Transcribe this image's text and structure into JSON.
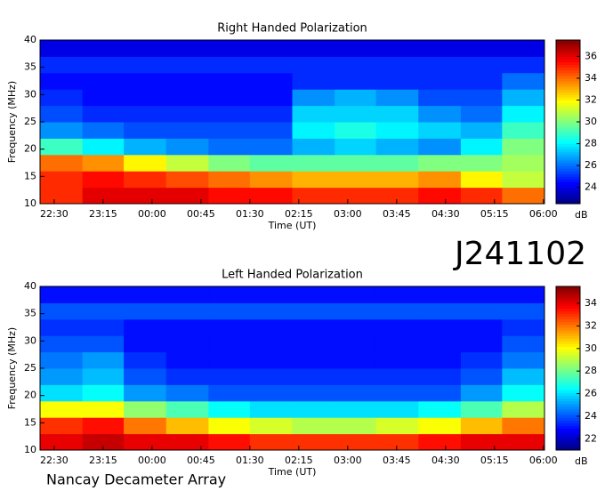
{
  "chart_data": [
    {
      "type": "heatmap",
      "title": "Right Handed Polarization",
      "x_label": "Time (UT)",
      "y_label": "Frequency (MHz)",
      "colorbar_label": "dB",
      "colormap": "jet",
      "xlim": [
        1337,
        1801
      ],
      "xticks": [
        {
          "value": 1350,
          "label": "22:30"
        },
        {
          "value": 1395,
          "label": "23:15"
        },
        {
          "value": 1440,
          "label": "00:00"
        },
        {
          "value": 1485,
          "label": "00:45"
        },
        {
          "value": 1530,
          "label": "01:30"
        },
        {
          "value": 1575,
          "label": "02:15"
        },
        {
          "value": 1620,
          "label": "03:00"
        },
        {
          "value": 1665,
          "label": "03:45"
        },
        {
          "value": 1710,
          "label": "04:30"
        },
        {
          "value": 1755,
          "label": "05:15"
        },
        {
          "value": 1800,
          "label": "06:00"
        }
      ],
      "ylim": [
        10,
        40
      ],
      "yticks": [
        10,
        15,
        20,
        25,
        30,
        35,
        40
      ],
      "zlim": [
        22.5,
        37.5
      ],
      "zticks": [
        24,
        26,
        28,
        30,
        32,
        34,
        36
      ],
      "x_edges": [
        1337,
        1376,
        1414,
        1453,
        1492,
        1530,
        1569,
        1608,
        1646,
        1685,
        1724,
        1762,
        1801
      ],
      "y_edges": [
        10,
        13,
        16,
        19,
        22,
        25,
        28,
        31,
        34,
        37,
        40
      ],
      "z": [
        [
          35,
          36,
          36,
          36,
          35.5,
          35.5,
          35,
          35,
          35,
          35.5,
          35,
          34
        ],
        [
          35,
          35.5,
          35,
          34.5,
          34,
          33.5,
          33,
          33,
          33,
          33.5,
          32,
          31
        ],
        [
          34,
          33.5,
          32,
          31,
          30,
          29.5,
          29.5,
          29.5,
          29.5,
          30,
          30,
          30.5
        ],
        [
          29,
          28,
          27,
          26.5,
          26,
          26,
          27,
          27.5,
          27,
          26.5,
          28,
          30
        ],
        [
          26.5,
          26,
          25.5,
          25.5,
          25.5,
          25.5,
          28,
          28.5,
          28,
          27.5,
          27,
          29
        ],
        [
          25.5,
          25,
          25,
          25,
          25,
          25,
          27.5,
          27.5,
          27.5,
          26.5,
          26,
          28
        ],
        [
          25,
          24.5,
          24.5,
          24.5,
          24.5,
          24.5,
          26.5,
          27,
          26.5,
          25.5,
          25.5,
          27
        ],
        [
          24.5,
          24.5,
          24.5,
          24.5,
          24.5,
          24.5,
          25,
          25,
          25,
          25,
          25,
          26
        ],
        [
          25,
          25,
          25,
          25,
          25,
          25,
          25,
          25,
          25,
          25,
          25,
          25
        ],
        [
          24,
          24,
          24,
          24,
          24,
          24,
          24,
          24,
          24,
          24,
          24,
          24
        ]
      ]
    },
    {
      "type": "heatmap",
      "title": "Left Handed Polarization",
      "x_label": "Time (UT)",
      "y_label": "Frequency (MHz)",
      "colorbar_label": "dB",
      "colormap": "jet",
      "xlim": [
        1337,
        1801
      ],
      "xticks": [
        {
          "value": 1350,
          "label": "22:30"
        },
        {
          "value": 1395,
          "label": "23:15"
        },
        {
          "value": 1440,
          "label": "00:00"
        },
        {
          "value": 1485,
          "label": "00:45"
        },
        {
          "value": 1530,
          "label": "01:30"
        },
        {
          "value": 1575,
          "label": "02:15"
        },
        {
          "value": 1620,
          "label": "03:00"
        },
        {
          "value": 1665,
          "label": "03:45"
        },
        {
          "value": 1710,
          "label": "04:30"
        },
        {
          "value": 1755,
          "label": "05:15"
        },
        {
          "value": 1800,
          "label": "06:00"
        }
      ],
      "ylim": [
        10,
        40
      ],
      "yticks": [
        10,
        15,
        20,
        25,
        30,
        35,
        40
      ],
      "zlim": [
        21,
        35.5
      ],
      "zticks": [
        22,
        24,
        26,
        28,
        30,
        32,
        34
      ],
      "x_edges": [
        1337,
        1376,
        1414,
        1453,
        1492,
        1530,
        1569,
        1608,
        1646,
        1685,
        1724,
        1762,
        1801
      ],
      "y_edges": [
        10,
        13,
        16,
        19,
        22,
        25,
        28,
        31,
        34,
        37,
        40
      ],
      "z": [
        [
          34,
          34.5,
          34,
          34,
          33.5,
          33,
          33,
          33,
          33,
          33.5,
          34,
          34
        ],
        [
          33,
          33.5,
          32,
          31,
          30,
          29.5,
          29,
          29,
          29.5,
          30,
          31,
          32
        ],
        [
          30,
          30,
          28.5,
          27.5,
          26.5,
          26,
          26,
          26,
          26,
          26.5,
          27.5,
          29
        ],
        [
          26,
          26.5,
          25,
          24.5,
          24,
          24,
          24,
          24,
          24,
          24,
          25,
          26.5
        ],
        [
          25,
          25.5,
          24,
          23.5,
          23.5,
          23.5,
          23.5,
          23.5,
          23.5,
          23.5,
          24,
          25.5
        ],
        [
          24.5,
          25,
          23.5,
          23,
          23,
          23,
          23,
          23,
          23,
          23,
          23.5,
          24.5
        ],
        [
          24,
          24,
          23,
          23,
          23,
          23,
          23,
          23,
          23,
          23,
          23,
          24
        ],
        [
          23.5,
          23.5,
          23,
          23,
          23,
          23,
          23,
          23,
          23,
          23,
          23,
          23.5
        ],
        [
          24,
          24,
          24,
          24,
          24,
          24,
          24,
          24,
          24,
          24,
          24,
          24
        ],
        [
          23,
          23,
          23,
          23,
          23,
          23,
          23,
          23,
          23,
          23,
          23,
          23
        ]
      ]
    }
  ],
  "label": "J241102",
  "footer": "Nancay Decameter Array"
}
